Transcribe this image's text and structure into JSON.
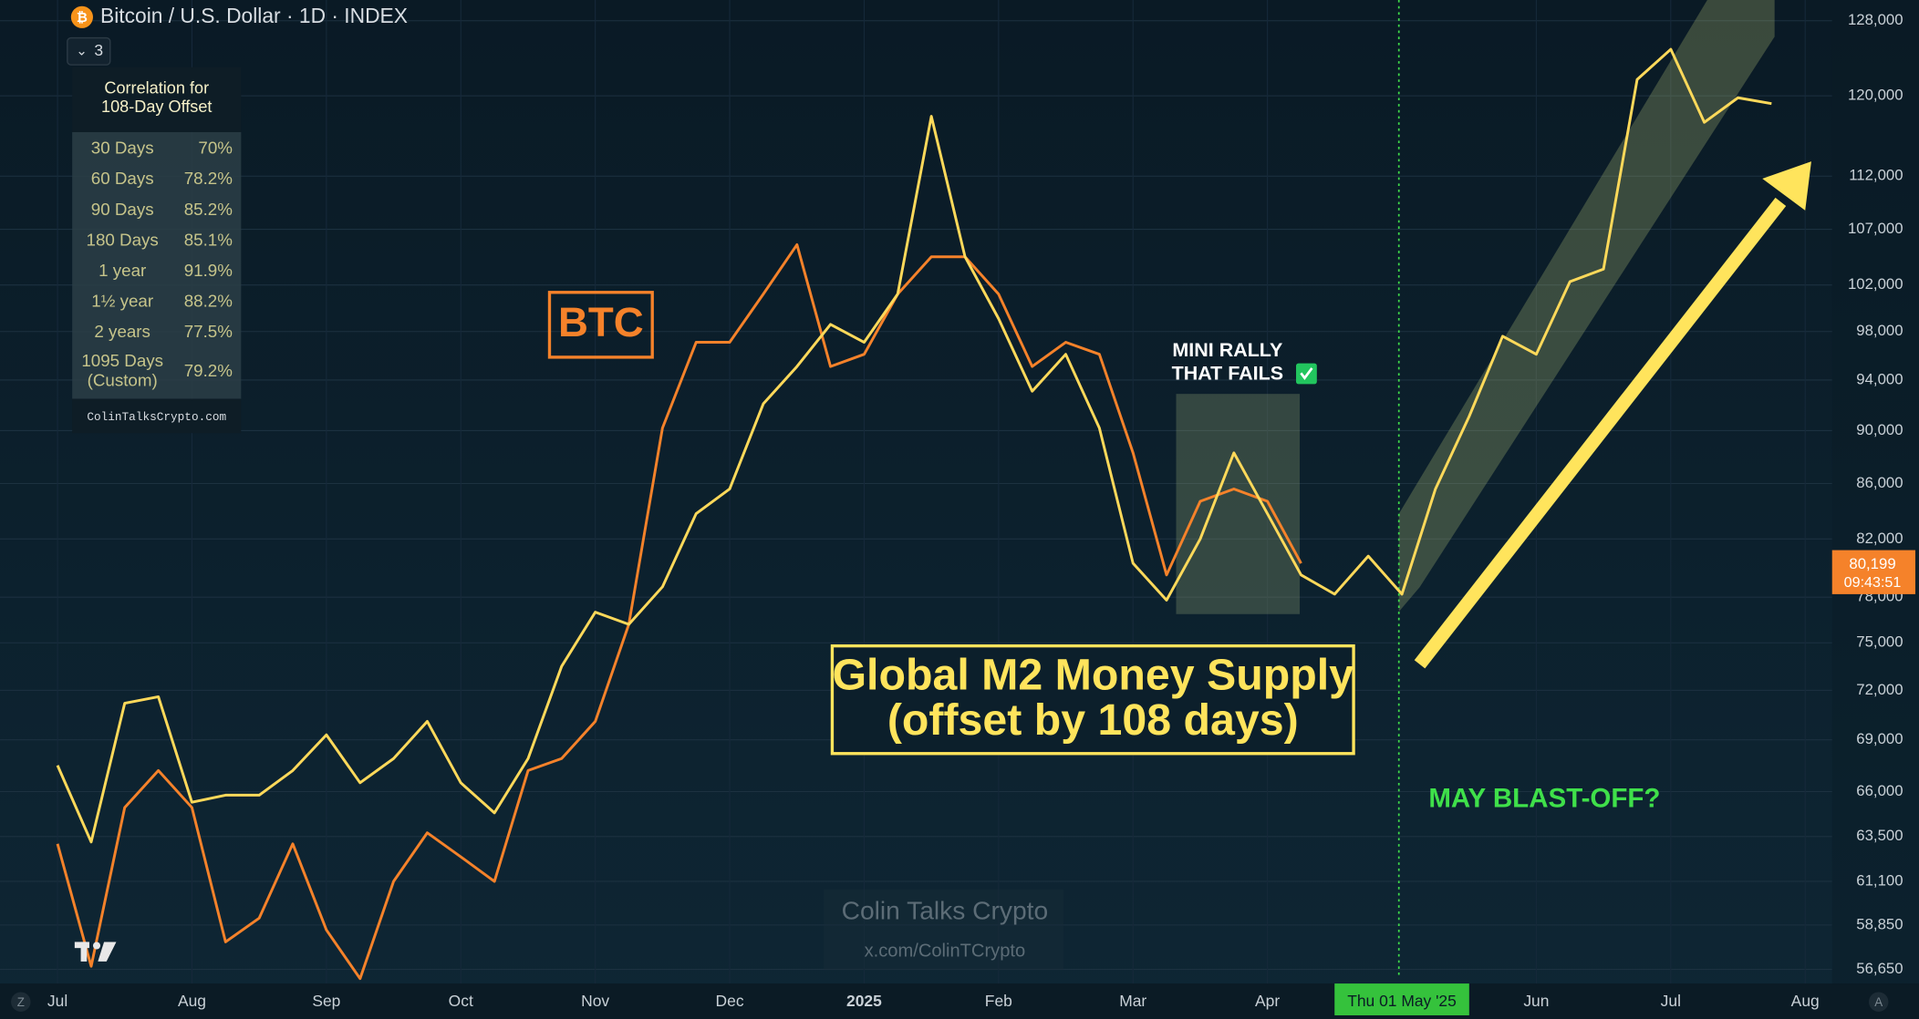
{
  "header": {
    "symbol": "Bitcoin / U.S. Dollar · 1D · INDEX",
    "indicator_count": "3"
  },
  "correlation_table": {
    "title": [
      "Correlation for",
      "108-Day Offset"
    ],
    "rows": [
      [
        "30 Days",
        "70%"
      ],
      [
        "60 Days",
        "78.2%"
      ],
      [
        "90 Days",
        "85.2%"
      ],
      [
        "180 Days",
        "85.1%"
      ],
      [
        "1 year",
        "91.9%"
      ],
      [
        "1½ year",
        "88.2%"
      ],
      [
        "2 years",
        "77.5%"
      ],
      [
        [
          "1095 Days",
          "(Custom)"
        ],
        "79.2%"
      ]
    ],
    "footer": "ColinTalksCrypto.com"
  },
  "annotations": {
    "mini_rally": [
      "MINI RALLY",
      "THAT FAILS"
    ],
    "m2_offset": "(offset by 108 days)",
    "blast_off": "MAY BLAST-OFF?",
    "watermark": "Colin Talks Crypto",
    "watermark_url": "x.com/ColinTCrypto",
    "corner_left": "Z",
    "corner_right": "A"
  },
  "chart_data": {
    "type": "line",
    "log_scale": true,
    "grid": true,
    "categories": [
      "Jul",
      null,
      null,
      null,
      "Aug",
      null,
      null,
      null,
      "Sep",
      null,
      null,
      null,
      "Oct",
      null,
      null,
      null,
      "Nov",
      null,
      null,
      null,
      "Dec",
      null,
      null,
      null,
      "2025",
      null,
      null,
      null,
      "Feb",
      null,
      null,
      null,
      "Mar",
      null,
      null,
      null,
      "Apr",
      null,
      null,
      null,
      null,
      null,
      null,
      null,
      "Jun",
      null,
      null,
      null,
      "Jul",
      null,
      null,
      null,
      "Aug"
    ],
    "crosshair_label": "Thu 01 May '25",
    "series": [
      {
        "name": "Global M2 Money Supply",
        "color": "#ffd95a",
        "values": [
          67500,
          63200,
          71200,
          71600,
          65400,
          65800,
          65800,
          67200,
          69300,
          66500,
          67900,
          70100,
          66500,
          64800,
          67900,
          73500,
          77000,
          76200,
          78700,
          83800,
          85600,
          92100,
          95100,
          98600,
          97100,
          101200,
          117900,
          104500,
          99100,
          93100,
          96100,
          90200,
          80300,
          77800,
          82000,
          88300,
          83800,
          79500,
          78200,
          80800,
          78200,
          85600,
          91100,
          97600,
          96100,
          102300,
          103400,
          121700,
          124900,
          117300,
          119800,
          119200,
          null
        ]
      },
      {
        "name": "BTC",
        "color": "#f5822a",
        "values": [
          63100,
          56800,
          65100,
          67200,
          65100,
          58000,
          59200,
          63100,
          58600,
          56200,
          61100,
          63700,
          62400,
          61100,
          67200,
          67900,
          70100,
          76200,
          90200,
          97100,
          97100,
          101200,
          105600,
          95100,
          96100,
          101200,
          104500,
          104500,
          101200,
          95100,
          97100,
          96100,
          88300,
          79500,
          84700,
          85600,
          84700,
          80300,
          null,
          null,
          null,
          null,
          null,
          null,
          null,
          null,
          null,
          null,
          null,
          null,
          null,
          null,
          null
        ]
      }
    ],
    "last_price": {
      "value": 80199,
      "label": "80,199"
    },
    "countdown": "09:43:51",
    "ylim": [
      56200,
      130300
    ],
    "yticks": [
      {
        "value": 128000,
        "label": "128,000"
      },
      {
        "value": 120000,
        "label": "120,000"
      },
      {
        "value": 112000,
        "label": "112,000"
      },
      {
        "value": 107000,
        "label": "107,000"
      },
      {
        "value": 102000,
        "label": "102,000"
      },
      {
        "value": 98000,
        "label": "98,000"
      },
      {
        "value": 94000,
        "label": "94,000"
      },
      {
        "value": 90000,
        "label": "90,000"
      },
      {
        "value": 86000,
        "label": "86,000"
      },
      {
        "value": 82000,
        "label": "82,000"
      },
      {
        "value": 78000,
        "label": "78,000"
      },
      {
        "value": 75000,
        "label": "75,000"
      },
      {
        "value": 72000,
        "label": "72,000"
      },
      {
        "value": 69000,
        "label": "69,000"
      },
      {
        "value": 66000,
        "label": "66,000"
      },
      {
        "value": 63500,
        "label": "63,500"
      },
      {
        "value": 61100,
        "label": "61,100"
      },
      {
        "value": 58850,
        "label": "58,850"
      },
      {
        "value": 56650,
        "label": "56,650"
      }
    ]
  }
}
